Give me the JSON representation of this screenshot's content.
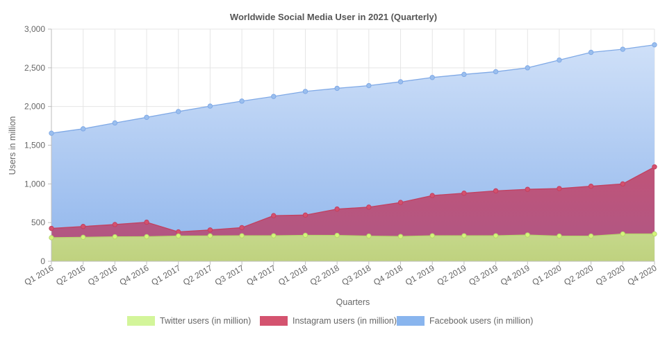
{
  "chart_data": {
    "type": "area",
    "title": "Worldwide Social Media User in 2021 (Quarterly)",
    "xlabel": "Quarters",
    "ylabel": "Users in million",
    "ylim": [
      0,
      3000
    ],
    "yticks": [
      0,
      500,
      1000,
      1500,
      2000,
      2500,
      3000
    ],
    "ytick_labels": [
      "0",
      "500",
      "1,000",
      "1,500",
      "2,000",
      "2,500",
      "3,000"
    ],
    "grid": true,
    "legend_position": "bottom",
    "categories": [
      "Q1 2016",
      "Q2 2016",
      "Q3 2016",
      "Q4 2016",
      "Q1 2017",
      "Q2 2017",
      "Q3 2017",
      "Q4 2017",
      "Q1 2018",
      "Q2 2018",
      "Q3 2018",
      "Q4 2018",
      "Q1 2019",
      "Q2 2019",
      "Q3 2019",
      "Q4 2019",
      "Q1 2020",
      "Q2 2020",
      "Q3 2020",
      "Q4 2020"
    ],
    "series": [
      {
        "name": "Twitter users (in million)",
        "fill": "#c8df8c",
        "stroke": "#b7d46e",
        "marker": "#d4f57a",
        "legend_color": "#d3f59a",
        "values": [
          305,
          310,
          317,
          318,
          327,
          328,
          330,
          330,
          336,
          335,
          326,
          321,
          330,
          330,
          330,
          340,
          326,
          326,
          353,
          353
        ]
      },
      {
        "name": "Instagram users (in million)",
        "fill": "#b5426c",
        "stroke": "#c2405f",
        "marker": "#d4516f",
        "legend_color": "#d4536f",
        "values": [
          425,
          450,
          475,
          505,
          380,
          405,
          435,
          590,
          597,
          675,
          700,
          760,
          850,
          880,
          910,
          930,
          940,
          970,
          1000,
          1220
        ]
      },
      {
        "name": "Facebook users (in million)",
        "fill": "#a7c8f3",
        "stroke": "#7fa9e6",
        "marker": "#9bbfee",
        "legend_color": "#89b5ee",
        "values": [
          1655,
          1712,
          1788,
          1860,
          1935,
          2005,
          2070,
          2130,
          2195,
          2235,
          2270,
          2320,
          2375,
          2415,
          2450,
          2500,
          2600,
          2700,
          2740,
          2797
        ]
      }
    ]
  }
}
